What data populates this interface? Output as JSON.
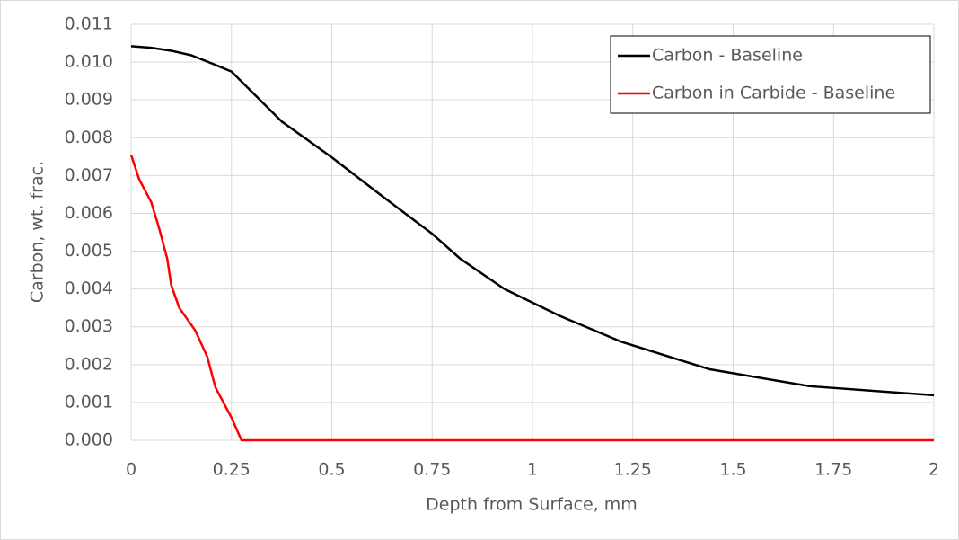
{
  "chart_data": {
    "type": "line",
    "xlabel": "Depth from Surface, mm",
    "ylabel": "Carbon, wt. frac.",
    "xlim": [
      0,
      2
    ],
    "xticks": [
      0,
      0.25,
      0.5,
      0.75,
      1,
      1.25,
      1.5,
      1.75,
      2
    ],
    "ylim": [
      0,
      0.011
    ],
    "yticks": [
      {
        "value": 0,
        "label": "0.000"
      },
      {
        "value": 0.001,
        "label": "0.001"
      },
      {
        "value": 0.002,
        "label": "0.002"
      },
      {
        "value": 0.003,
        "label": "0.003"
      },
      {
        "value": 0.004,
        "label": "0.004"
      },
      {
        "value": 0.005,
        "label": "0.005"
      },
      {
        "value": 0.006,
        "label": "0.006"
      },
      {
        "value": 0.007,
        "label": "0.007"
      },
      {
        "value": 0.008,
        "label": "0.008"
      },
      {
        "value": 0.009,
        "label": "0.009"
      },
      {
        "value": 0.01,
        "label": "0.010"
      },
      {
        "value": 0.011,
        "label": "0.011"
      }
    ],
    "grid": true,
    "legend": "upper right",
    "series": [
      {
        "name": "Carbon - Baseline",
        "color": "#000000",
        "x": [
          0,
          0.05,
          0.1,
          0.15,
          0.2,
          0.25,
          0.375,
          0.5,
          0.625,
          0.75,
          0.82,
          0.93,
          1.07,
          1.22,
          1.44,
          1.69,
          2
        ],
        "values": [
          0.01042,
          0.01038,
          0.0103,
          0.01018,
          0.00997,
          0.00975,
          0.00843,
          0.00748,
          0.00646,
          0.00546,
          0.0048,
          0.004,
          0.00328,
          0.00261,
          0.00188,
          0.00143,
          0.00119
        ]
      },
      {
        "name": "Carbon in Carbide - Baseline",
        "color": "#ff0000",
        "x": [
          0,
          0.02,
          0.05,
          0.07,
          0.09,
          0.1,
          0.12,
          0.14,
          0.16,
          0.19,
          0.21,
          0.25,
          0.275,
          2
        ],
        "values": [
          0.00755,
          0.0069,
          0.0063,
          0.0056,
          0.0048,
          0.0041,
          0.0035,
          0.0032,
          0.0029,
          0.0022,
          0.0014,
          0.0006,
          0,
          0
        ]
      }
    ]
  }
}
